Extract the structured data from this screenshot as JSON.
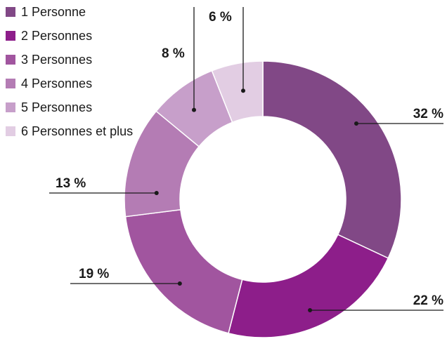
{
  "chart_data": {
    "type": "pie",
    "categories": [
      "1 Personne",
      "2 Personnes",
      "3 Personnes",
      "4 Personnes",
      "5 Personnes",
      "6 Personnes et plus"
    ],
    "values": [
      32,
      22,
      19,
      13,
      8,
      6
    ],
    "labels": [
      "32 %",
      "22 %",
      "19 %",
      "13 %",
      "8 %",
      "6 %"
    ],
    "colors": [
      "#814886",
      "#8d1e8a",
      "#a1559f",
      "#b47cb4",
      "#c79fca",
      "#e2cde3"
    ],
    "legend_position": "top-left",
    "title": "",
    "xlabel": "",
    "ylabel": ""
  }
}
